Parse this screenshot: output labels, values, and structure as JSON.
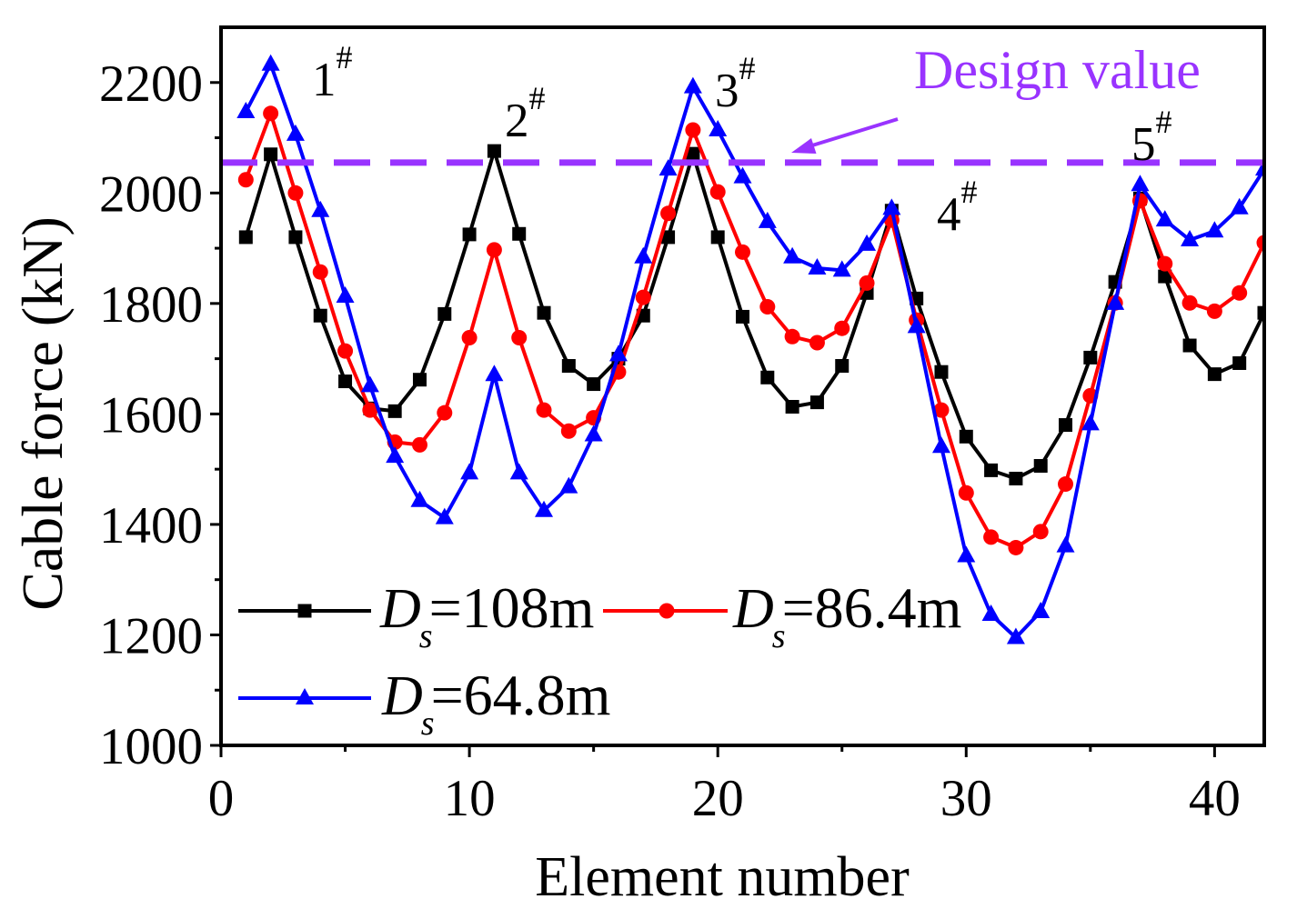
{
  "chart_data": {
    "type": "line",
    "xlabel": "Element number",
    "ylabel": "Cable force (kN)",
    "xlim": [
      0,
      42
    ],
    "ylim": [
      1000,
      2300
    ],
    "xticks": [
      0,
      10,
      20,
      30,
      40
    ],
    "yticks": [
      1000,
      1200,
      1400,
      1600,
      1800,
      2000,
      2200
    ],
    "x": [
      1,
      2,
      3,
      4,
      5,
      6,
      7,
      8,
      9,
      10,
      11,
      12,
      13,
      14,
      15,
      16,
      17,
      18,
      19,
      20,
      21,
      22,
      23,
      24,
      25,
      26,
      27,
      28,
      29,
      30,
      31,
      32,
      33,
      34,
      35,
      36,
      37,
      38,
      39,
      40,
      41,
      42
    ],
    "series": [
      {
        "label_main": "D",
        "label_sub": "s",
        "label_rest": "=108m",
        "color": "#000000",
        "marker": "square",
        "values": [
          1920,
          2070,
          1920,
          1778,
          1659,
          1610,
          1605,
          1662,
          1781,
          1925,
          2076,
          1926,
          1783,
          1687,
          1654,
          1700,
          1778,
          1920,
          2071,
          1920,
          1776,
          1666,
          1613,
          1621,
          1687,
          1819,
          1968,
          1809,
          1676,
          1559,
          1498,
          1483,
          1506,
          1580,
          1702,
          1839,
          1990,
          1849,
          1724,
          1672,
          1692,
          1783
        ]
      },
      {
        "label_main": "D",
        "label_sub": "s",
        "label_rest": "=86.4m",
        "color": "#ff0000",
        "marker": "circle",
        "values": [
          2024,
          2144,
          2000,
          1857,
          1714,
          1607,
          1549,
          1544,
          1602,
          1738,
          1897,
          1738,
          1607,
          1569,
          1593,
          1676,
          1811,
          1963,
          2114,
          2002,
          1893,
          1794,
          1740,
          1729,
          1755,
          1837,
          1951,
          1770,
          1607,
          1457,
          1377,
          1358,
          1387,
          1473,
          1633,
          1801,
          1986,
          1872,
          1801,
          1786,
          1819,
          1910
        ]
      },
      {
        "label_main": "D",
        "label_sub": "s",
        "label_rest": "=64.8m",
        "color": "#0000ff",
        "marker": "triangle",
        "values": [
          2147,
          2233,
          2106,
          1968,
          1813,
          1651,
          1523,
          1443,
          1412,
          1493,
          1671,
          1493,
          1425,
          1468,
          1562,
          1707,
          1884,
          2043,
          2192,
          2114,
          2029,
          1948,
          1884,
          1864,
          1860,
          1907,
          1972,
          1758,
          1541,
          1343,
          1237,
          1195,
          1242,
          1361,
          1582,
          1800,
          2015,
          1951,
          1915,
          1931,
          1973,
          2043
        ]
      }
    ],
    "reference_line": {
      "label": "Design value",
      "value": 2055,
      "color": "#9933ff"
    },
    "annotations": [
      {
        "text": "1",
        "sup": "#"
      },
      {
        "text": "2",
        "sup": "#"
      },
      {
        "text": "3",
        "sup": "#"
      },
      {
        "text": "4",
        "sup": "#"
      },
      {
        "text": "5",
        "sup": "#"
      }
    ]
  }
}
